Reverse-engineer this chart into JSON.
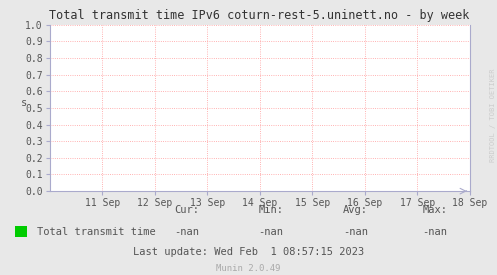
{
  "title": "Total transmit time IPv6 coturn-rest-5.uninett.no - by week",
  "ylabel": "s",
  "background_color": "#e8e8e8",
  "plot_bg_color": "#ffffff",
  "grid_color": "#ff9999",
  "axis_color": "#aaaacc",
  "title_color": "#333333",
  "tick_color": "#555555",
  "watermark": "RRDTOOL / TOBI OETIKER",
  "munin_version": "Munin 2.0.49",
  "xlim_start": 1347235200,
  "xlim_end": 1347926400,
  "ylim": [
    0.0,
    1.0
  ],
  "yticks": [
    0.0,
    0.1,
    0.2,
    0.3,
    0.4,
    0.5,
    0.6,
    0.7,
    0.8,
    0.9,
    1.0
  ],
  "xtick_labels": [
    "11 Sep",
    "12 Sep",
    "13 Sep",
    "14 Sep",
    "15 Sep",
    "16 Sep",
    "17 Sep",
    "18 Sep"
  ],
  "xtick_positions": [
    1347321600,
    1347408000,
    1347494400,
    1347580800,
    1347667200,
    1347753600,
    1347840000,
    1347926400
  ],
  "legend_label": "Total transmit time",
  "legend_color": "#00cc00",
  "cur_val": "-nan",
  "min_val": "-nan",
  "avg_val": "-nan",
  "max_val": "-nan",
  "last_update": "Last update: Wed Feb  1 08:57:15 2023",
  "footer_color": "#aaaaaa",
  "stats_label_color": "#555555",
  "stats_value_color": "#555555"
}
